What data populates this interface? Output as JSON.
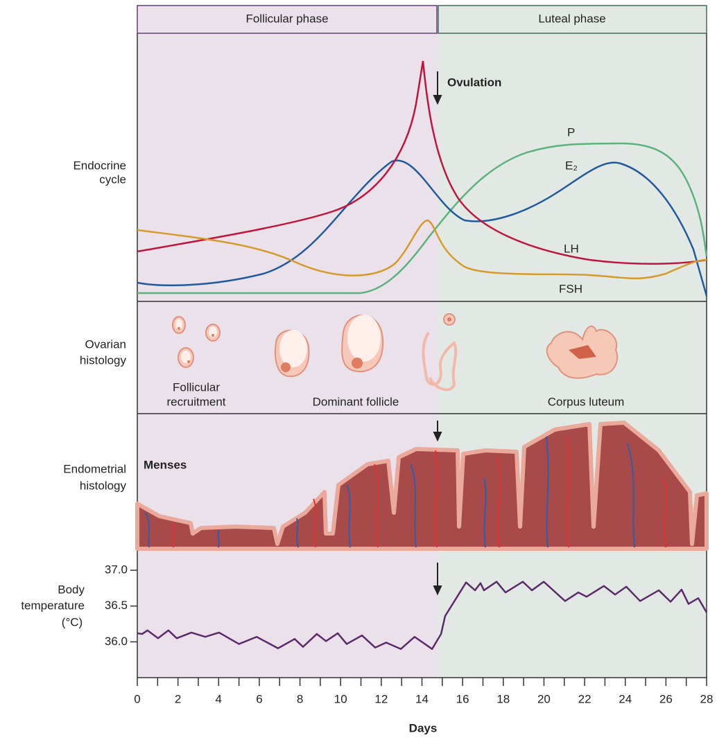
{
  "header": {
    "follicular": "Follicular phase",
    "luteal": "Luteal phase"
  },
  "rows": {
    "endocrine": [
      "Endocrine",
      "cycle"
    ],
    "ovarian": [
      "Ovarian",
      "histology"
    ],
    "endometrial": [
      "Endometrial",
      "histology"
    ],
    "temperature": [
      "Body",
      "temperature",
      "(°C)"
    ]
  },
  "endocrine": {
    "ovulation": "Ovulation",
    "labels": {
      "p": "P",
      "e2": "E₂",
      "lh": "LH",
      "fsh": "FSH"
    }
  },
  "ovarian": {
    "recruitment": [
      "Follicular",
      "recruitment"
    ],
    "dominant": "Dominant follicle",
    "corpus": "Corpus luteum"
  },
  "endometrial": {
    "menses": "Menses"
  },
  "chart_data": {
    "type": "line",
    "x_label": "Days",
    "x": [
      0,
      0.24,
      0.5,
      1.02,
      1.53,
      1.94,
      2.66,
      3.34,
      4.02,
      5.0,
      5.87,
      6.92,
      7.74,
      8.15,
      8.83,
      9.28,
      9.86,
      10.3,
      11.05,
      11.7,
      12.24,
      12.96,
      13.64,
      14.5,
      14.94,
      15.14,
      16.17,
      16.61,
      16.88,
      17.05,
      17.67,
      18.11,
      18.96,
      19.41,
      19.99,
      21.04,
      21.69,
      22.1,
      22.95,
      23.5,
      24.05,
      24.73,
      25.65,
      26.23,
      26.77,
      27.11,
      27.59,
      28
    ],
    "series": [
      {
        "color": "#5b2a6b",
        "values": [
          36.12,
          36.11,
          36.16,
          36.05,
          36.16,
          36.05,
          36.13,
          36.07,
          36.13,
          35.97,
          36.07,
          35.91,
          36.04,
          35.93,
          36.11,
          36.01,
          36.12,
          35.97,
          36.09,
          35.92,
          35.99,
          35.9,
          36.07,
          35.9,
          36.11,
          36.36,
          36.83,
          36.72,
          36.82,
          36.72,
          36.84,
          36.69,
          36.84,
          36.72,
          36.84,
          36.57,
          36.69,
          36.63,
          36.78,
          36.66,
          36.77,
          36.57,
          36.72,
          36.56,
          36.73,
          36.53,
          36.61,
          36.41
        ]
      }
    ],
    "xlim": [
      0,
      28
    ],
    "xticks": [
      0,
      2,
      4,
      6,
      8,
      10,
      12,
      14,
      16,
      18,
      20,
      22,
      24,
      26,
      28
    ],
    "xminorticks": [
      1,
      3,
      5,
      7,
      9,
      11,
      13,
      15,
      17,
      19,
      21,
      23,
      25,
      27
    ],
    "ylim": [
      35.5,
      37.3
    ],
    "yticks": [
      {
        "value": 36,
        "label": "36.0"
      },
      {
        "value": 36.5,
        "label": "36.5"
      },
      {
        "value": 37,
        "label": "37.0"
      }
    ]
  }
}
